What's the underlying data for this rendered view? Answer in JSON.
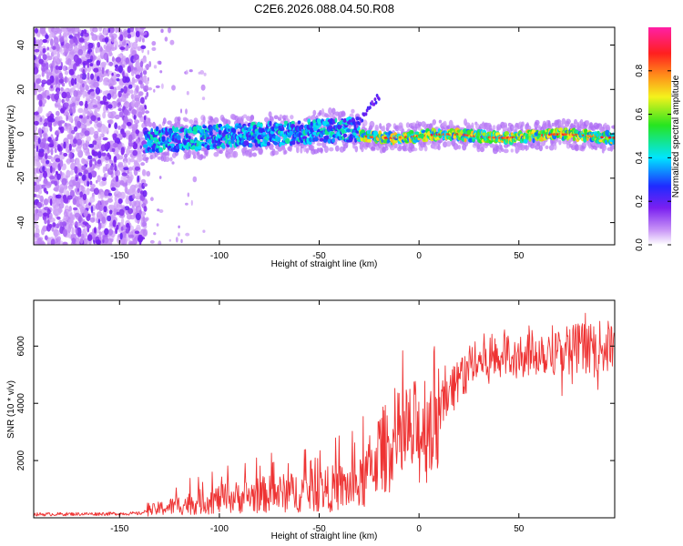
{
  "title": "C2E6.2026.088.04.50.R08",
  "colors": {
    "snr_line": "#ee3333",
    "speckle": "#7a1ff0",
    "frame": "#000000"
  },
  "chart_data": [
    {
      "type": "heatmap",
      "name": "spectrogram",
      "xlabel": "Height of straight line (km)",
      "ylabel": "Frequency (Hz)",
      "xlim": [
        -193,
        98
      ],
      "ylim": [
        -50,
        48
      ],
      "xticks": [
        -150,
        -100,
        -50,
        0,
        50
      ],
      "yticks": [
        -40,
        -20,
        0,
        20,
        40
      ],
      "colorbar": {
        "label": "Normalized spectral amplitude",
        "range": [
          0,
          1
        ],
        "ticks": [
          "0.0",
          "0.2",
          "0.4",
          "0.6",
          "0.8"
        ],
        "tick_values": [
          0,
          0.2,
          0.4,
          0.6,
          0.8
        ],
        "colormap": "rainbow (white - violet - blue - cyan - green - yellow - orange - red - magenta)"
      },
      "regions": [
        {
          "x_range": [
            -193,
            -137
          ],
          "y_range": [
            -50,
            48
          ],
          "description": "scattered noise speckles, amplitude 0.1-0.3"
        },
        {
          "x_range": [
            -137,
            -30
          ],
          "y_center_trend": [
            -3,
            3
          ],
          "description": "diffuse band, amplitude 0.3-0.6"
        },
        {
          "x_range": [
            -30,
            98
          ],
          "y_center": -1,
          "description": "narrow band, amplitude 0.6-0.9"
        }
      ]
    },
    {
      "type": "line",
      "name": "snr",
      "xlabel": "Height of straight line (km)",
      "ylabel": "SNR (10 * v/v)",
      "xlim": [
        -193,
        98
      ],
      "ylim": [
        0,
        7600
      ],
      "xticks": [
        -150,
        -100,
        -50,
        0,
        50
      ],
      "yticks": [
        2000,
        4000,
        6000
      ],
      "trend": {
        "x": [
          -193,
          -140,
          -135,
          -120,
          -100,
          -80,
          -60,
          -40,
          -30,
          -26,
          -20,
          -10,
          0,
          10,
          20,
          30,
          50,
          70,
          98
        ],
        "y": [
          120,
          150,
          250,
          450,
          650,
          800,
          900,
          1050,
          1100,
          1500,
          2300,
          2700,
          3000,
          3900,
          4900,
          5500,
          5800,
          5900,
          6000
        ]
      }
    }
  ]
}
